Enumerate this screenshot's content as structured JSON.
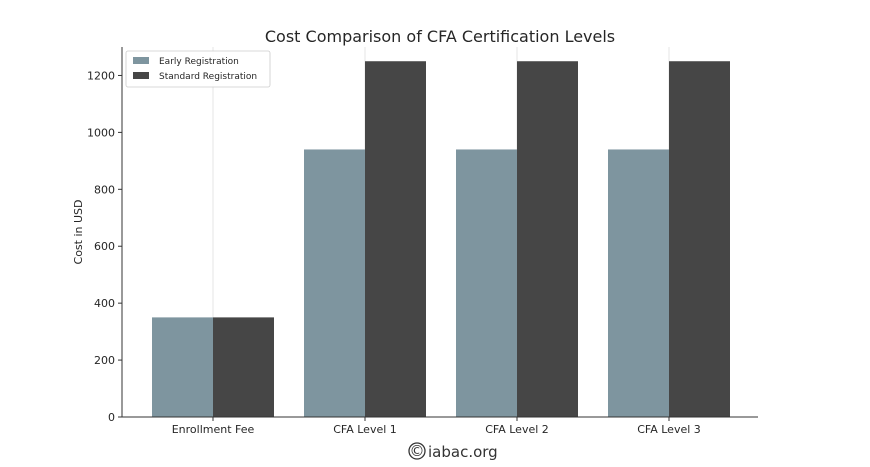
{
  "chart_data": {
    "type": "bar",
    "title": "Cost Comparison of CFA Certification Levels",
    "xlabel": "",
    "ylabel": "Cost in USD",
    "categories": [
      "Enrollment Fee",
      "CFA Level 1",
      "CFA Level 2",
      "CFA Level 3"
    ],
    "series": [
      {
        "name": "Early Registration",
        "values": [
          350,
          940,
          940,
          940
        ],
        "color": "#7e959f"
      },
      {
        "name": "Standard Registration",
        "values": [
          350,
          1250,
          1250,
          1250
        ],
        "color": "#464646"
      }
    ],
    "ylim": [
      0,
      1300
    ],
    "yticks": [
      0,
      200,
      400,
      600,
      800,
      1000,
      1200
    ],
    "grid": "vertical-light",
    "legend_position": "top-left"
  },
  "watermark": {
    "symbol": "©",
    "text": "iabac.org"
  }
}
